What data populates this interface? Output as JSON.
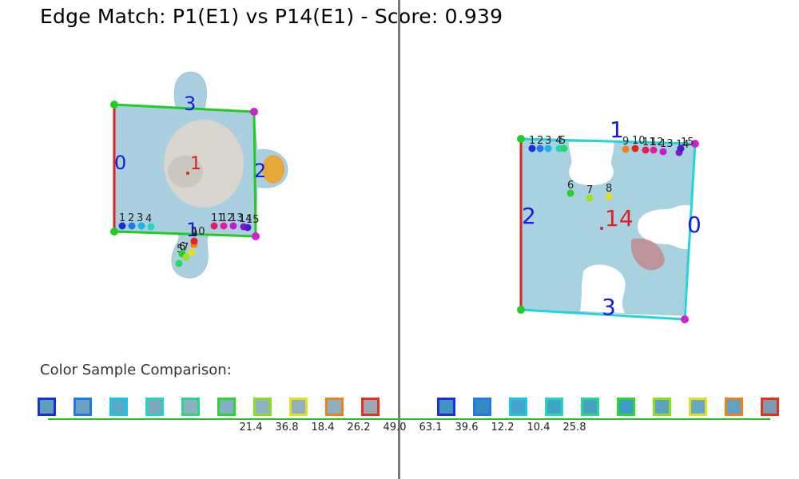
{
  "title": "Edge Match: P1(E1) vs P14(E1) - Score: 0.939",
  "score": 0.939,
  "left_piece": {
    "id": "1",
    "edge_labels": [
      "0",
      "1",
      "2",
      "3"
    ],
    "sample_point_labels": [
      "1",
      "2",
      "3",
      "4",
      "5",
      "6",
      "7",
      "8",
      "9",
      "10",
      "11",
      "12",
      "13",
      "14",
      "15"
    ],
    "edge_colors": {
      "selected": "#e02020",
      "other": "#22cc22"
    }
  },
  "right_piece": {
    "id": "14",
    "edge_labels": [
      "0",
      "1",
      "2",
      "3"
    ],
    "sample_point_labels": [
      "1",
      "2",
      "3",
      "4",
      "5",
      "6",
      "7",
      "8",
      "9",
      "10",
      "11",
      "12",
      "13",
      "14",
      "15"
    ],
    "edge_colors": {
      "selected": "#e02020",
      "other": "#22d4dd"
    }
  },
  "comparison": {
    "label": "Color Sample Comparison:",
    "swatch_borders": [
      "#1a2ee0",
      "#1e7ae8",
      "#18c6e8",
      "#20d8c0",
      "#28d888",
      "#28d830",
      "#88e020",
      "#e0e020",
      "#f08018",
      "#e83018"
    ],
    "left_fills": [
      "#5f9fbd",
      "#6ba3bf",
      "#5aa9c4",
      "#7aa7b9",
      "#8bb1c3",
      "#83aec3",
      "#8fb2c0",
      "#93b0c2",
      "#8daec3",
      "#9aa9b8"
    ],
    "right_fills": [
      "#4193c4",
      "#3589c2",
      "#49a3c8",
      "#41a3c3",
      "#48a0c5",
      "#3d9cc4",
      "#5ea2c0",
      "#68a8c7",
      "#60a1c6",
      "#7d9ab3"
    ],
    "distances": [
      "21.4",
      "36.8",
      "18.4",
      "26.2",
      "49.0",
      "63.1",
      "39.6",
      "12.2",
      "10.4",
      "25.8"
    ]
  }
}
